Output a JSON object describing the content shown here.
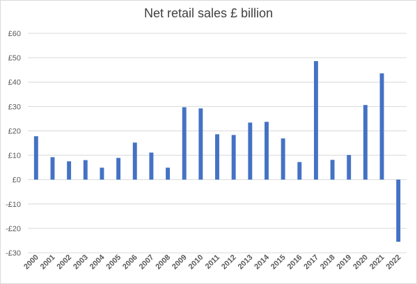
{
  "chart_data": {
    "type": "bar",
    "title": "Net retail sales £ billion",
    "xlabel": "",
    "ylabel": "",
    "ylim": [
      -30,
      60
    ],
    "yticks": [
      60,
      50,
      40,
      30,
      20,
      10,
      0,
      -10,
      -20,
      -30
    ],
    "ytick_labels": [
      "£60",
      "£50",
      "£40",
      "£30",
      "£20",
      "£10",
      "£0",
      "-£10",
      "-£20",
      "-£30"
    ],
    "grid": true,
    "legend": "none",
    "bar_color": "#4472c4",
    "grid_color": "#d9d9d9",
    "categories": [
      "2000",
      "2001",
      "2002",
      "2003",
      "2004",
      "2005",
      "2006",
      "2007",
      "2008",
      "2009",
      "2010",
      "2011",
      "2012",
      "2013",
      "2014",
      "2015",
      "2016",
      "2017",
      "2018",
      "2019",
      "2020",
      "2021",
      "2022"
    ],
    "values": [
      17.8,
      9.2,
      7.5,
      8.0,
      4.9,
      8.9,
      15.2,
      11.1,
      4.9,
      29.7,
      29.2,
      18.6,
      18.3,
      23.4,
      23.7,
      16.9,
      7.2,
      48.6,
      8.1,
      10.1,
      30.6,
      43.6,
      -25.5
    ]
  }
}
